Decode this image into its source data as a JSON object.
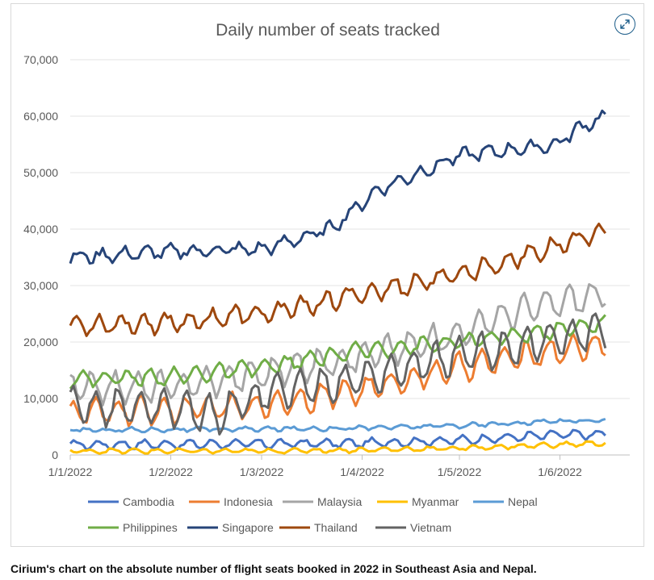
{
  "caption": "Cirium's chart on the absolute number of flight seats booked in 2022 in Southeast Asia and Nepal.",
  "expand_icon": "expand-arrows-icon",
  "chart_data": {
    "type": "line",
    "title": "Daily number of seats tracked",
    "xlabel": "",
    "ylabel": "",
    "ylim": [
      0,
      70000
    ],
    "yticks": [
      0,
      10000,
      20000,
      30000,
      40000,
      50000,
      60000,
      70000
    ],
    "ytick_labels": [
      "0",
      "10,000",
      "20,000",
      "30,000",
      "40,000",
      "50,000",
      "60,000",
      "70,000"
    ],
    "xtick_labels": [
      "1/1/2022",
      "1/2/2022",
      "1/3/2022",
      "1/4/2022",
      "1/5/2022",
      "1/6/2022"
    ],
    "xtick_days": [
      0,
      31,
      59,
      90,
      120,
      151
    ],
    "xlim_days": [
      0,
      165
    ],
    "grid": "horizontal",
    "legend_position": "bottom",
    "series": [
      {
        "name": "Cambodia",
        "color": "#4472C4",
        "amp": 700,
        "noise": 300,
        "keys": [
          [
            0,
            1800
          ],
          [
            90,
            2100
          ],
          [
            120,
            2600
          ],
          [
            150,
            3600
          ],
          [
            165,
            3600
          ]
        ]
      },
      {
        "name": "Indonesia",
        "color": "#ED7D31",
        "amp": 2200,
        "noise": 700,
        "keys": [
          [
            0,
            7500
          ],
          [
            30,
            8000
          ],
          [
            55,
            8500
          ],
          [
            90,
            11500
          ],
          [
            120,
            15500
          ],
          [
            150,
            18500
          ],
          [
            165,
            19500
          ]
        ]
      },
      {
        "name": "Malaysia",
        "color": "#A5A5A5",
        "amp": 2500,
        "noise": 800,
        "keys": [
          [
            0,
            12000
          ],
          [
            30,
            12000
          ],
          [
            60,
            14500
          ],
          [
            90,
            17500
          ],
          [
            115,
            20500
          ],
          [
            135,
            25000
          ],
          [
            150,
            27000
          ],
          [
            165,
            28500
          ]
        ]
      },
      {
        "name": "Myanmar",
        "color": "#FFC000",
        "amp": 350,
        "noise": 200,
        "keys": [
          [
            0,
            700
          ],
          [
            60,
            700
          ],
          [
            90,
            900
          ],
          [
            120,
            1200
          ],
          [
            165,
            2100
          ]
        ]
      },
      {
        "name": "Nepal",
        "color": "#5B9BD5",
        "amp": 300,
        "noise": 250,
        "keys": [
          [
            0,
            4400
          ],
          [
            60,
            4600
          ],
          [
            90,
            4800
          ],
          [
            120,
            5200
          ],
          [
            150,
            6000
          ],
          [
            165,
            6100
          ]
        ]
      },
      {
        "name": "Philippines",
        "color": "#70AD47",
        "amp": 1300,
        "noise": 500,
        "keys": [
          [
            0,
            13500
          ],
          [
            30,
            13800
          ],
          [
            60,
            15500
          ],
          [
            90,
            18500
          ],
          [
            120,
            20000
          ],
          [
            150,
            22000
          ],
          [
            165,
            23500
          ]
        ]
      },
      {
        "name": "Singapore",
        "color": "#264478",
        "amp": 900,
        "noise": 700,
        "keys": [
          [
            0,
            35000
          ],
          [
            30,
            36000
          ],
          [
            60,
            36500
          ],
          [
            80,
            40000
          ],
          [
            95,
            47000
          ],
          [
            120,
            53000
          ],
          [
            150,
            55000
          ],
          [
            157,
            58000
          ],
          [
            165,
            60000
          ]
        ]
      },
      {
        "name": "Thailand",
        "color": "#9E480E",
        "amp": 1500,
        "noise": 800,
        "keys": [
          [
            0,
            23000
          ],
          [
            30,
            23500
          ],
          [
            60,
            25000
          ],
          [
            90,
            28500
          ],
          [
            120,
            32000
          ],
          [
            150,
            37000
          ],
          [
            165,
            40000
          ]
        ]
      },
      {
        "name": "Vietnam",
        "color": "#636363",
        "amp": 3000,
        "noise": 900,
        "keys": [
          [
            0,
            8500
          ],
          [
            30,
            8500
          ],
          [
            45,
            7000
          ],
          [
            60,
            11000
          ],
          [
            90,
            13500
          ],
          [
            120,
            17500
          ],
          [
            150,
            20500
          ],
          [
            165,
            22000
          ]
        ]
      }
    ]
  }
}
